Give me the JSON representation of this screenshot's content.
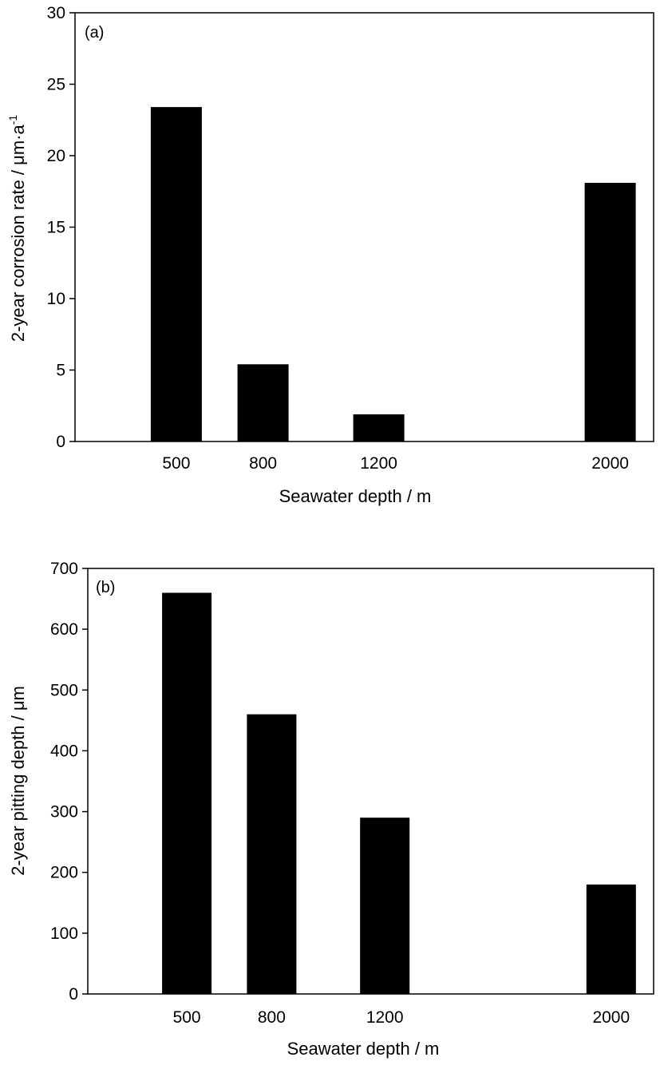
{
  "chart_data": [
    {
      "type": "bar",
      "panel_label": "(a)",
      "categories": [
        "500",
        "800",
        "1200",
        "2000"
      ],
      "x": [
        500,
        800,
        1200,
        2000
      ],
      "values": [
        23.4,
        5.4,
        1.9,
        18.1
      ],
      "xlabel": "Seawater depth / m",
      "ylabel": "2-year corrosion rate  / μm·a",
      "ylabel_sup": "-1",
      "ylim": [
        0,
        30
      ],
      "yticks": [
        0,
        5,
        10,
        15,
        20,
        25,
        30
      ],
      "xlim": [
        150,
        2150
      ],
      "bar_color": "#000000",
      "grid": false
    },
    {
      "type": "bar",
      "panel_label": "(b)",
      "categories": [
        "500",
        "800",
        "1200",
        "2000"
      ],
      "x": [
        500,
        800,
        1200,
        2000
      ],
      "values": [
        660,
        460,
        290,
        180
      ],
      "xlabel": "Seawater depth / m",
      "ylabel": "2-year pitting depth / μm",
      "ylim": [
        0,
        700
      ],
      "yticks": [
        0,
        100,
        200,
        300,
        400,
        500,
        600,
        700
      ],
      "xlim": [
        150,
        2150
      ],
      "bar_color": "#000000",
      "grid": false
    }
  ]
}
